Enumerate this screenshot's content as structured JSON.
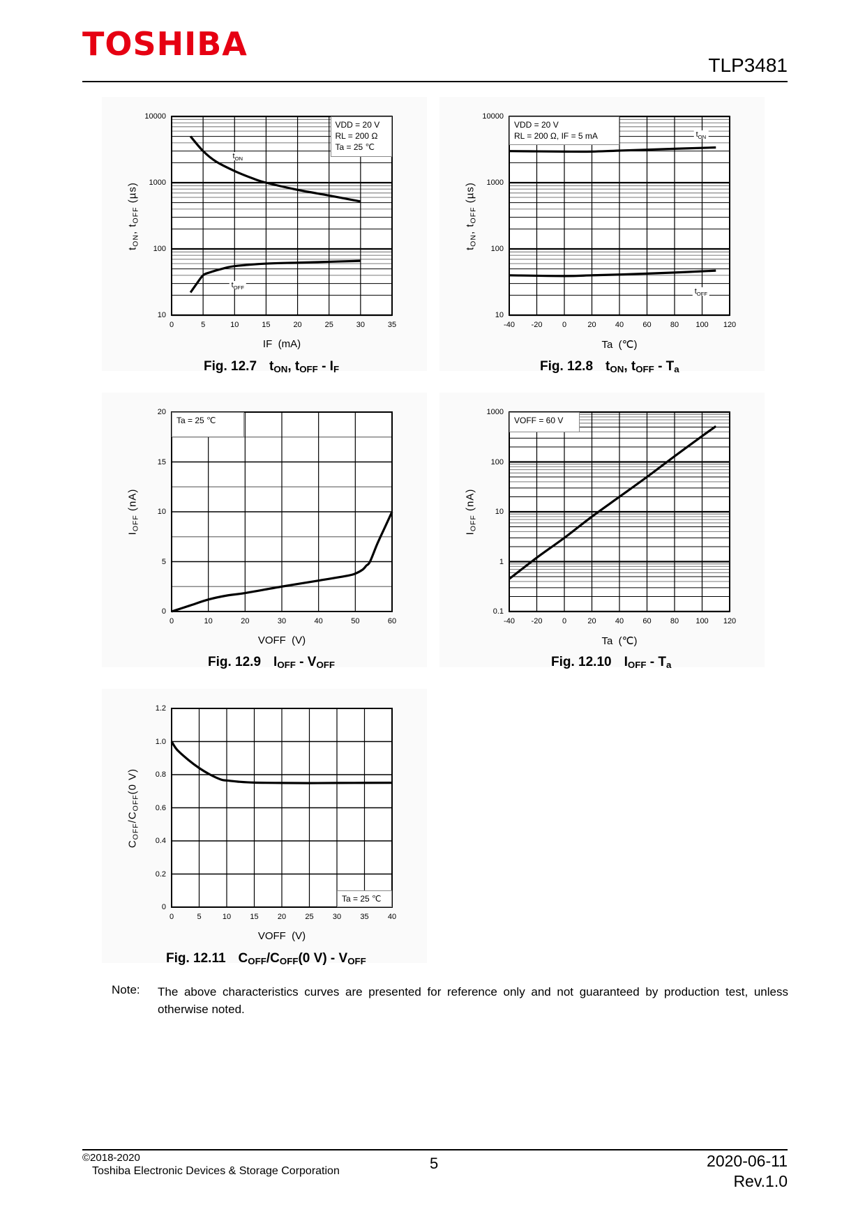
{
  "header": {
    "logo": "TOSHIBA",
    "part_number": "TLP3481"
  },
  "chart_data": [
    {
      "id": "fig-12-7",
      "type": "line",
      "caption_number": "Fig. 12.7",
      "caption_title": "tON, tOFF - IF",
      "xlabel": "IF  (mA)",
      "ylabel": "tON, tOFF  (µs)",
      "xscale": "linear",
      "yscale": "log",
      "xlim": [
        0,
        35
      ],
      "ylim": [
        10,
        10000
      ],
      "xticks": [
        "0",
        "5",
        "10",
        "15",
        "20",
        "25",
        "30",
        "35"
      ],
      "yticks": [
        "10",
        "100",
        "1000",
        "10000"
      ],
      "grid": true,
      "legend_lines": [
        "VDD = 20 V",
        "RL = 200 Ω",
        "Ta = 25 ℃"
      ],
      "series": [
        {
          "name": "tON",
          "x": [
            3,
            5,
            7,
            10,
            13,
            15,
            20,
            25,
            30
          ],
          "y": [
            5000,
            3000,
            2100,
            1500,
            1150,
            1000,
            780,
            640,
            520
          ]
        },
        {
          "name": "tOFF",
          "x": [
            3,
            4,
            5,
            6,
            8,
            10,
            15,
            20,
            25,
            30
          ],
          "y": [
            22,
            30,
            40,
            44,
            50,
            55,
            60,
            62,
            64,
            66
          ]
        }
      ]
    },
    {
      "id": "fig-12-8",
      "type": "line",
      "caption_number": "Fig. 12.8",
      "caption_title": "tON, tOFF - Ta",
      "xlabel": "Ta  (℃)",
      "ylabel": "tON, tOFF  (µs)",
      "xscale": "linear",
      "yscale": "log",
      "xlim": [
        -40,
        120
      ],
      "ylim": [
        10,
        10000
      ],
      "xticks": [
        "-40",
        "-20",
        "0",
        "20",
        "40",
        "60",
        "80",
        "100",
        "120"
      ],
      "yticks": [
        "10",
        "100",
        "1000",
        "10000"
      ],
      "grid": true,
      "legend_lines": [
        "VDD = 20 V",
        "RL = 200 Ω, IF = 5 mA"
      ],
      "series": [
        {
          "name": "tON",
          "x": [
            -40,
            0,
            20,
            40,
            80,
            110
          ],
          "y": [
            3000,
            2950,
            2950,
            3050,
            3250,
            3400
          ]
        },
        {
          "name": "tOFF",
          "x": [
            -40,
            0,
            20,
            40,
            80,
            110
          ],
          "y": [
            40,
            39,
            40,
            41,
            44,
            47
          ]
        }
      ]
    },
    {
      "id": "fig-12-9",
      "type": "line",
      "caption_number": "Fig. 12.9",
      "caption_title": "IOFF - VOFF",
      "xlabel": "VOFF  (V)",
      "ylabel": "IOFF  (nA)",
      "xscale": "linear",
      "yscale": "linear",
      "xlim": [
        0,
        60
      ],
      "ylim": [
        0,
        20
      ],
      "xticks": [
        "0",
        "10",
        "20",
        "30",
        "40",
        "50",
        "60"
      ],
      "yticks": [
        "0",
        "5",
        "10",
        "15",
        "20"
      ],
      "grid": true,
      "legend_lines": [
        "Ta = 25 ℃"
      ],
      "series": [
        {
          "x": [
            0,
            5,
            10,
            15,
            20,
            30,
            40,
            48,
            50,
            52,
            53,
            54,
            56,
            58,
            60
          ],
          "y": [
            0,
            0.6,
            1.2,
            1.6,
            1.85,
            2.5,
            3.1,
            3.6,
            3.8,
            4.2,
            4.6,
            5.0,
            6.8,
            8.4,
            10
          ]
        }
      ]
    },
    {
      "id": "fig-12-10",
      "type": "line",
      "caption_number": "Fig. 12.10",
      "caption_title": "IOFF - Ta",
      "xlabel": "Ta  (℃)",
      "ylabel": "IOFF  (nA)",
      "xscale": "linear",
      "yscale": "log",
      "xlim": [
        -40,
        120
      ],
      "ylim": [
        0.1,
        1000
      ],
      "xticks": [
        "-40",
        "-20",
        "0",
        "20",
        "40",
        "60",
        "80",
        "100",
        "120"
      ],
      "yticks": [
        "0.1",
        "1",
        "10",
        "100",
        "1000"
      ],
      "grid": true,
      "legend_lines": [
        "VOFF = 60 V"
      ],
      "series": [
        {
          "x": [
            -40,
            -20,
            0,
            20,
            40,
            60,
            80,
            100,
            110
          ],
          "y": [
            0.45,
            1.2,
            3,
            8,
            20,
            50,
            130,
            330,
            520
          ]
        }
      ]
    },
    {
      "id": "fig-12-11",
      "type": "line",
      "caption_number": "Fig. 12.11",
      "caption_title": "COFF/COFF(0 V) - VOFF",
      "xlabel": "VOFF  (V)",
      "ylabel": "COFF/COFF(0 V)",
      "xscale": "linear",
      "yscale": "linear",
      "xlim": [
        0,
        40
      ],
      "ylim": [
        0,
        1.2
      ],
      "xticks": [
        "0",
        "5",
        "10",
        "15",
        "20",
        "25",
        "30",
        "35",
        "40"
      ],
      "yticks": [
        "0",
        "0.2",
        "0.4",
        "0.6",
        "0.8",
        "1.0",
        "1.2"
      ],
      "grid": true,
      "legend_lines": [
        "Ta = 25 ℃"
      ],
      "series": [
        {
          "x": [
            0,
            1,
            3,
            5,
            7,
            9,
            10,
            12,
            15,
            20,
            25,
            30,
            40
          ],
          "y": [
            1.0,
            0.95,
            0.89,
            0.84,
            0.8,
            0.77,
            0.765,
            0.758,
            0.752,
            0.75,
            0.749,
            0.75,
            0.751
          ]
        }
      ]
    }
  ],
  "note": {
    "label": "Note:",
    "text": "The above characteristics curves are presented for reference only and not guaranteed by production test, unless otherwise noted."
  },
  "footer": {
    "copyright": "©2018-2020",
    "company": "Toshiba Electronic Devices & Storage Corporation",
    "page_number": "5",
    "date": "2020-06-11",
    "revision": "Rev.1.0"
  }
}
